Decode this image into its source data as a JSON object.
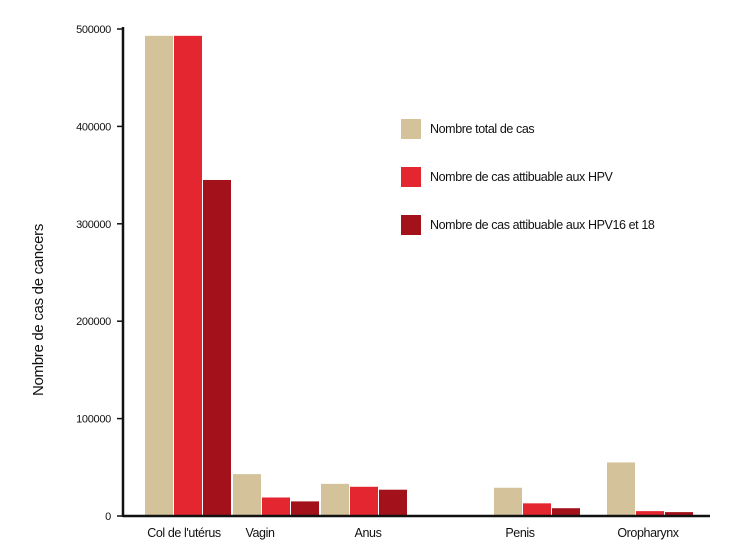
{
  "chart_data": {
    "type": "bar",
    "title": "",
    "xlabel": "",
    "ylabel": "Nombre de cas de cancers",
    "ylim": [
      0,
      500000
    ],
    "yticks": [
      0,
      100000,
      200000,
      300000,
      400000,
      500000
    ],
    "grid": false,
    "legend_position": "top-right",
    "categories": [
      "Col de l'utérus",
      "Vagin",
      "Anus",
      "Penis",
      "Oropharynx"
    ],
    "series": [
      {
        "name": "Nombre total de cas",
        "color": "#d4c29a",
        "values": [
          493000,
          43000,
          33000,
          29000,
          55000
        ]
      },
      {
        "name": "Nombre de cas attibuable aux HPV",
        "color": "#e32630",
        "values": [
          493000,
          19000,
          30000,
          13000,
          5000
        ]
      },
      {
        "name": "Nombre de cas attibuable aux HPV16 et 18",
        "color": "#a3121b",
        "values": [
          345000,
          15000,
          27000,
          8000,
          4000
        ]
      }
    ]
  }
}
